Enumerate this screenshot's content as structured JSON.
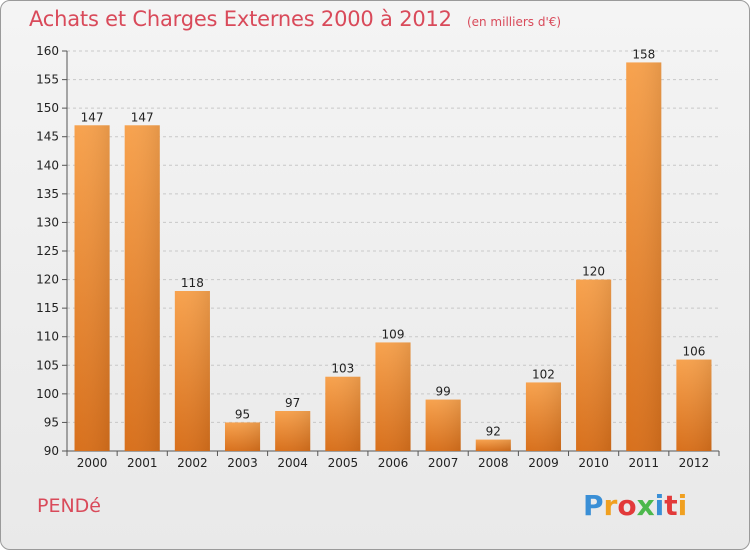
{
  "header": {
    "title": "Achats et Charges Externes 2000 à 2012",
    "subtitle": "(en milliers d'€)"
  },
  "commune": "PENDé",
  "brand": {
    "text": "Proxiti",
    "colors": [
      "#3a8fd6",
      "#f0a020",
      "#e23a3a",
      "#4cb84c",
      "#3a8fd6",
      "#e23a3a",
      "#f0a020"
    ]
  },
  "chart_data": {
    "type": "bar",
    "categories": [
      "2000",
      "2001",
      "2002",
      "2003",
      "2004",
      "2005",
      "2006",
      "2007",
      "2008",
      "2009",
      "2010",
      "2011",
      "2012"
    ],
    "values": [
      147,
      147,
      118,
      95,
      97,
      103,
      109,
      99,
      92,
      102,
      120,
      158,
      106
    ],
    "ylim": [
      90,
      160
    ],
    "yticks": [
      90,
      95,
      100,
      105,
      110,
      115,
      120,
      125,
      130,
      135,
      140,
      145,
      150,
      155,
      160
    ],
    "grid": "horizontal dashed",
    "bar_color": "#f08a2a"
  }
}
